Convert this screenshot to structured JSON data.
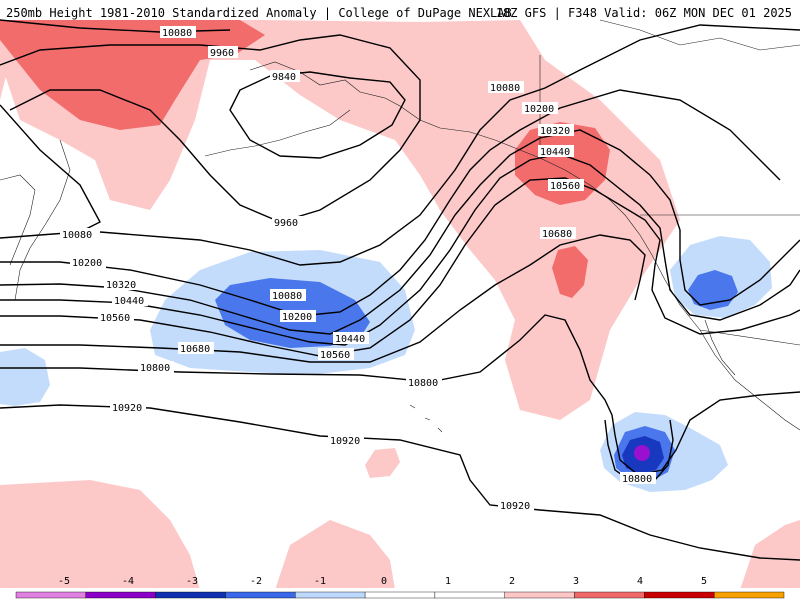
{
  "header": {
    "title_left": "250mb Height 1981-2010 Standardized Anomaly | College of DuPage NEXLAB",
    "title_right": "18Z GFS | F348 Valid: 06Z MON DEC 01 2025"
  },
  "contour_labels": {
    "c10080_top": "10080",
    "c9960_top": "9960",
    "c9840": "9840",
    "c9960_low": "9960",
    "c10080_right": "10080",
    "c10200_right": "10200",
    "c10320_right": "10320",
    "c10440_right": "10440",
    "c10560_right": "10560",
    "c10680_right": "10680",
    "c10080_left": "10080",
    "c10200_left": "10200",
    "c10320_left": "10320",
    "c10440_left": "10440",
    "c10560_left": "10560",
    "c10680_left": "10680",
    "c10800_left": "10800",
    "c10920_left": "10920",
    "c10080_mid": "10080",
    "c10200_mid": "10200",
    "c10440_mid": "10440",
    "c10560_mid": "10560",
    "c10800_mid": "10800",
    "c10920_mid": "10920",
    "c10800_low": "10800",
    "c10920_low": "10920"
  },
  "colorbar": {
    "ticks": [
      "-5",
      "-4",
      "-3",
      "-2",
      "-1",
      "0",
      "1",
      "2",
      "3",
      "4",
      "5"
    ],
    "colors": [
      "#e080e0",
      "#8a00c8",
      "#1030b0",
      "#3a68e8",
      "#bcd8fc",
      "#ffffff",
      "#ffffff",
      "#fcc6c6",
      "#f06868",
      "#c80000",
      "#f8a000"
    ]
  },
  "colors": {
    "anom_neg1": "#c4dcfc",
    "anom_neg2": "#4a78ec",
    "anom_neg3": "#1838c0",
    "anom_neg4": "#9a10d0",
    "anom_pos1": "#fcc8c8",
    "anom_pos2": "#f26c6c"
  }
}
